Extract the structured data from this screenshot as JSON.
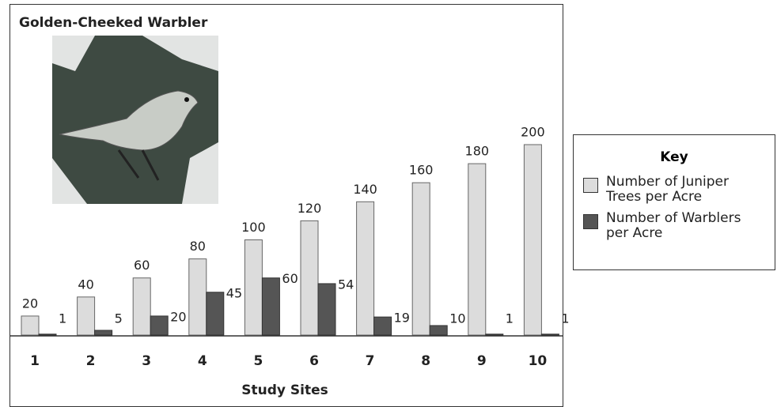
{
  "chart_data": {
    "type": "bar",
    "title": "Golden-Cheeked Warbler",
    "x_label": "Study Sites",
    "categories": [
      "1",
      "2",
      "3",
      "4",
      "5",
      "6",
      "7",
      "8",
      "9",
      "10"
    ],
    "series": [
      {
        "name": "Number of Juniper Trees per Acre",
        "color": "#dcdcdc",
        "values": [
          20,
          40,
          60,
          80,
          100,
          120,
          140,
          160,
          180,
          200
        ]
      },
      {
        "name": "Number of Warblers per Acre",
        "color": "#555555",
        "values": [
          1,
          5,
          20,
          45,
          60,
          54,
          19,
          10,
          1,
          1
        ]
      }
    ],
    "ylim": [
      0,
      200
    ],
    "legend_title": "Key",
    "legend": "right"
  }
}
